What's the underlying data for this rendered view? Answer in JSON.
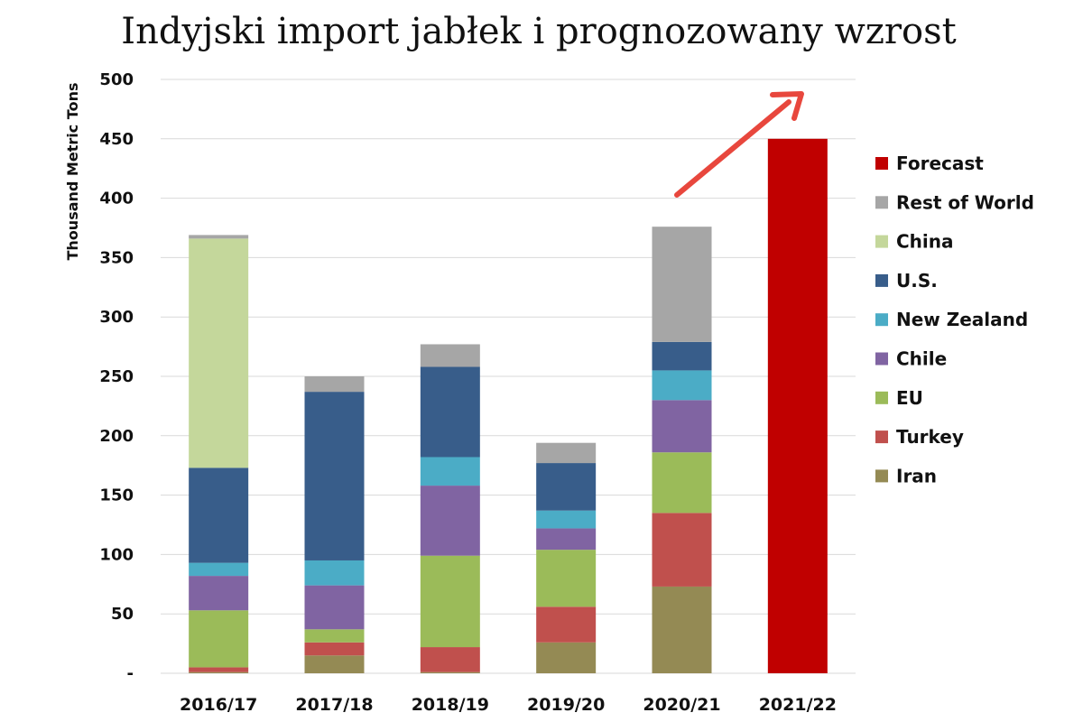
{
  "chart_data": {
    "type": "bar",
    "stacked": true,
    "title": "Indyjski import jabłek i prognozowany wzrost",
    "ylabel": "Thousand Metric Tons",
    "xlabel": "",
    "ylim": [
      0,
      500
    ],
    "yticks": [
      0,
      50,
      100,
      150,
      200,
      250,
      300,
      350,
      400,
      450,
      500
    ],
    "ytick_labels": [
      "-",
      "50",
      "100",
      "150",
      "200",
      "250",
      "300",
      "350",
      "400",
      "450",
      "500"
    ],
    "categories": [
      "2016/17",
      "2017/18",
      "2018/19",
      "2019/20",
      "2020/21",
      "2021/22"
    ],
    "grid": true,
    "legend_position": "right",
    "series": [
      {
        "name": "Iran",
        "color": "#948a54",
        "values": [
          1,
          15,
          1,
          26,
          73,
          0
        ]
      },
      {
        "name": "Turkey",
        "color": "#c0504d",
        "values": [
          4,
          11,
          21,
          30,
          62,
          0
        ]
      },
      {
        "name": "EU",
        "color": "#9bbb59",
        "values": [
          48,
          11,
          77,
          48,
          51,
          0
        ]
      },
      {
        "name": "Chile",
        "color": "#8064a2",
        "values": [
          29,
          37,
          59,
          18,
          44,
          0
        ]
      },
      {
        "name": "New Zealand",
        "color": "#4bacc6",
        "values": [
          11,
          21,
          24,
          15,
          25,
          0
        ]
      },
      {
        "name": "U.S.",
        "color": "#385d8a",
        "values": [
          80,
          142,
          76,
          40,
          24,
          0
        ]
      },
      {
        "name": "China",
        "color": "#c4d79b",
        "values": [
          193,
          0,
          0,
          0,
          0,
          0
        ]
      },
      {
        "name": "Rest of World",
        "color": "#a6a6a6",
        "values": [
          3,
          13,
          19,
          17,
          97,
          0
        ]
      },
      {
        "name": "Forecast",
        "color": "#c00000",
        "values": [
          0,
          0,
          0,
          0,
          0,
          450
        ]
      }
    ],
    "legend_order": [
      "Forecast",
      "Rest of World",
      "China",
      "U.S.",
      "New Zealand",
      "Chile",
      "EU",
      "Turkey",
      "Iran"
    ],
    "annotation": {
      "type": "arrow",
      "color": "#e8473d",
      "meaning": "growth trend toward forecast"
    }
  }
}
